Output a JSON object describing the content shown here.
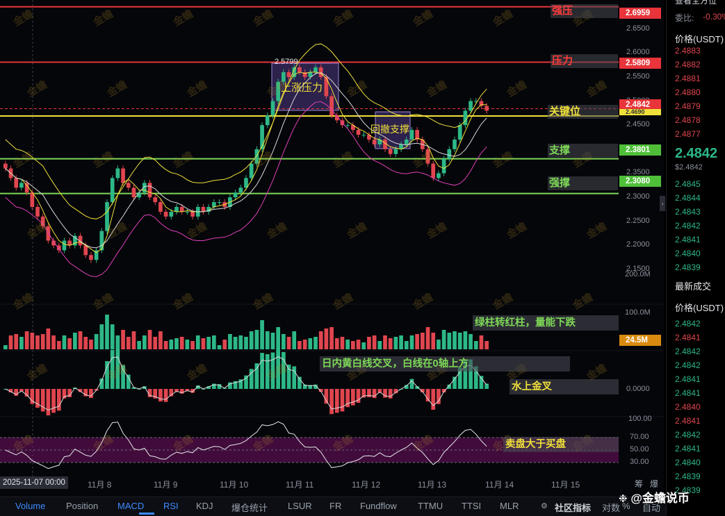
{
  "chart_data": {
    "type": "candlestick",
    "symbol_price": "2.4842",
    "x": [
      "2025-11-07 00:00",
      "11月 8",
      "11月 9",
      "11月 10",
      "11月 11",
      "11月 12",
      "11月 13",
      "11月 14",
      "11月 15"
    ],
    "y_ticks": [
      "2.6500",
      "2.6000",
      "2.5500",
      "2.5000",
      "2.4500",
      "2.4000",
      "2.3500",
      "2.3000",
      "2.2500",
      "2.2000",
      "2.1500"
    ],
    "ylim": [
      2.14,
      2.71
    ],
    "levels": [
      {
        "name": "强压",
        "value": "2.6959",
        "color": "#e8343a"
      },
      {
        "name": "压力",
        "value": "2.5809",
        "color": "#e8343a"
      },
      {
        "name": "关键位",
        "value": "2.4842",
        "color": "#e8343a"
      },
      {
        "name": "关键位",
        "value": "2.4690",
        "color": "#f0e03a"
      },
      {
        "name": "支撑",
        "value": "2.3801",
        "color": "#7ed957"
      },
      {
        "name": "强撑",
        "value": "2.3080",
        "color": "#7ed957"
      }
    ],
    "annotations": [
      {
        "label": "2.5799",
        "kind": "high"
      },
      {
        "label": "上涨压力",
        "kind": "box"
      },
      {
        "label": "回撤支撑",
        "kind": "box"
      }
    ],
    "close_series": [
      2.36,
      2.34,
      2.32,
      2.33,
      2.31,
      2.28,
      2.26,
      2.24,
      2.21,
      2.2,
      2.19,
      2.21,
      2.2,
      2.22,
      2.2,
      2.18,
      2.17,
      2.19,
      2.23,
      2.29,
      2.34,
      2.36,
      2.33,
      2.32,
      2.3,
      2.31,
      2.33,
      2.3,
      2.29,
      2.27,
      2.26,
      2.27,
      2.28,
      2.27,
      2.27,
      2.26,
      2.28,
      2.27,
      2.28,
      2.29,
      2.29,
      2.28,
      2.3,
      2.31,
      2.32,
      2.34,
      2.37,
      2.4,
      2.45,
      2.47,
      2.5,
      2.54,
      2.56,
      2.55,
      2.57,
      2.56,
      2.55,
      2.56,
      2.57,
      2.55,
      2.51,
      2.47,
      2.46,
      2.45,
      2.45,
      2.44,
      2.43,
      2.43,
      2.42,
      2.41,
      2.42,
      2.4,
      2.39,
      2.4,
      2.41,
      2.42,
      2.44,
      2.42,
      2.4,
      2.37,
      2.34,
      2.35,
      2.38,
      2.4,
      2.42,
      2.45,
      2.48,
      2.5,
      2.5,
      2.49,
      2.48
    ],
    "volume": {
      "axis_ticks": [
        "200.0M",
        "100.0M"
      ],
      "current": "24.5M",
      "note": "绿柱转红柱，量能下跌"
    },
    "macd": {
      "axis_ticks": [
        "0.0000"
      ],
      "note_1": "日内黄白线交叉，白线在0轴上方",
      "note_2": "水上金叉"
    },
    "rsi": {
      "axis_ticks": [
        "100.00",
        "70.00",
        "50.00",
        "30.00"
      ],
      "note": "卖盘大于买盘"
    }
  },
  "right_panel": {
    "top_label": "查看全方位",
    "ratio_label": "委比:",
    "ratio_value": "-0.30%",
    "price_header": "价格(USDT)",
    "asks": [
      "2.4883",
      "2.4882",
      "2.4881",
      "2.4880",
      "2.4879",
      "2.4878",
      "2.4877"
    ],
    "last_price": "2.4842",
    "last_price_sub": "$2.4842",
    "bids": [
      "2.4845",
      "2.4844",
      "2.4843",
      "2.4842",
      "2.4841",
      "2.4840",
      "2.4839"
    ],
    "trades_title": "最新成交",
    "trades_header": "价格(USDT)",
    "trades": [
      {
        "p": "2.4842",
        "c": "green"
      },
      {
        "p": "2.4841",
        "c": "red"
      },
      {
        "p": "2.4842",
        "c": "green"
      },
      {
        "p": "2.4842",
        "c": "green"
      },
      {
        "p": "2.4841",
        "c": "green"
      },
      {
        "p": "2.4841",
        "c": "green"
      },
      {
        "p": "2.4840",
        "c": "red"
      },
      {
        "p": "2.4841",
        "c": "red"
      },
      {
        "p": "2.4842",
        "c": "green"
      },
      {
        "p": "2.4841",
        "c": "green"
      },
      {
        "p": "2.4840",
        "c": "green"
      },
      {
        "p": "2.4839",
        "c": "green"
      },
      {
        "p": "2.4839",
        "c": "green"
      }
    ]
  },
  "toolbar": {
    "items": [
      "Volume",
      "Position",
      "MACD",
      "RSI",
      "KDJ",
      "爆仓统计",
      "LSUR",
      "FR",
      "Fundflow",
      "TTMU",
      "TTSI",
      "MLR"
    ],
    "community": "社区指标",
    "extra_1": "筹",
    "extra_2": "爆",
    "extra_3": "对数",
    "extra_4": "%",
    "extra_5": "自动"
  },
  "watermark": {
    "text": "金蟾",
    "brand": "@金蟾说币"
  },
  "colors": {
    "up": "#2db887",
    "down": "#e0464f",
    "bg": "#05060a",
    "resist": "#e8343a",
    "support": "#7ed957",
    "key": "#f0e03a"
  }
}
